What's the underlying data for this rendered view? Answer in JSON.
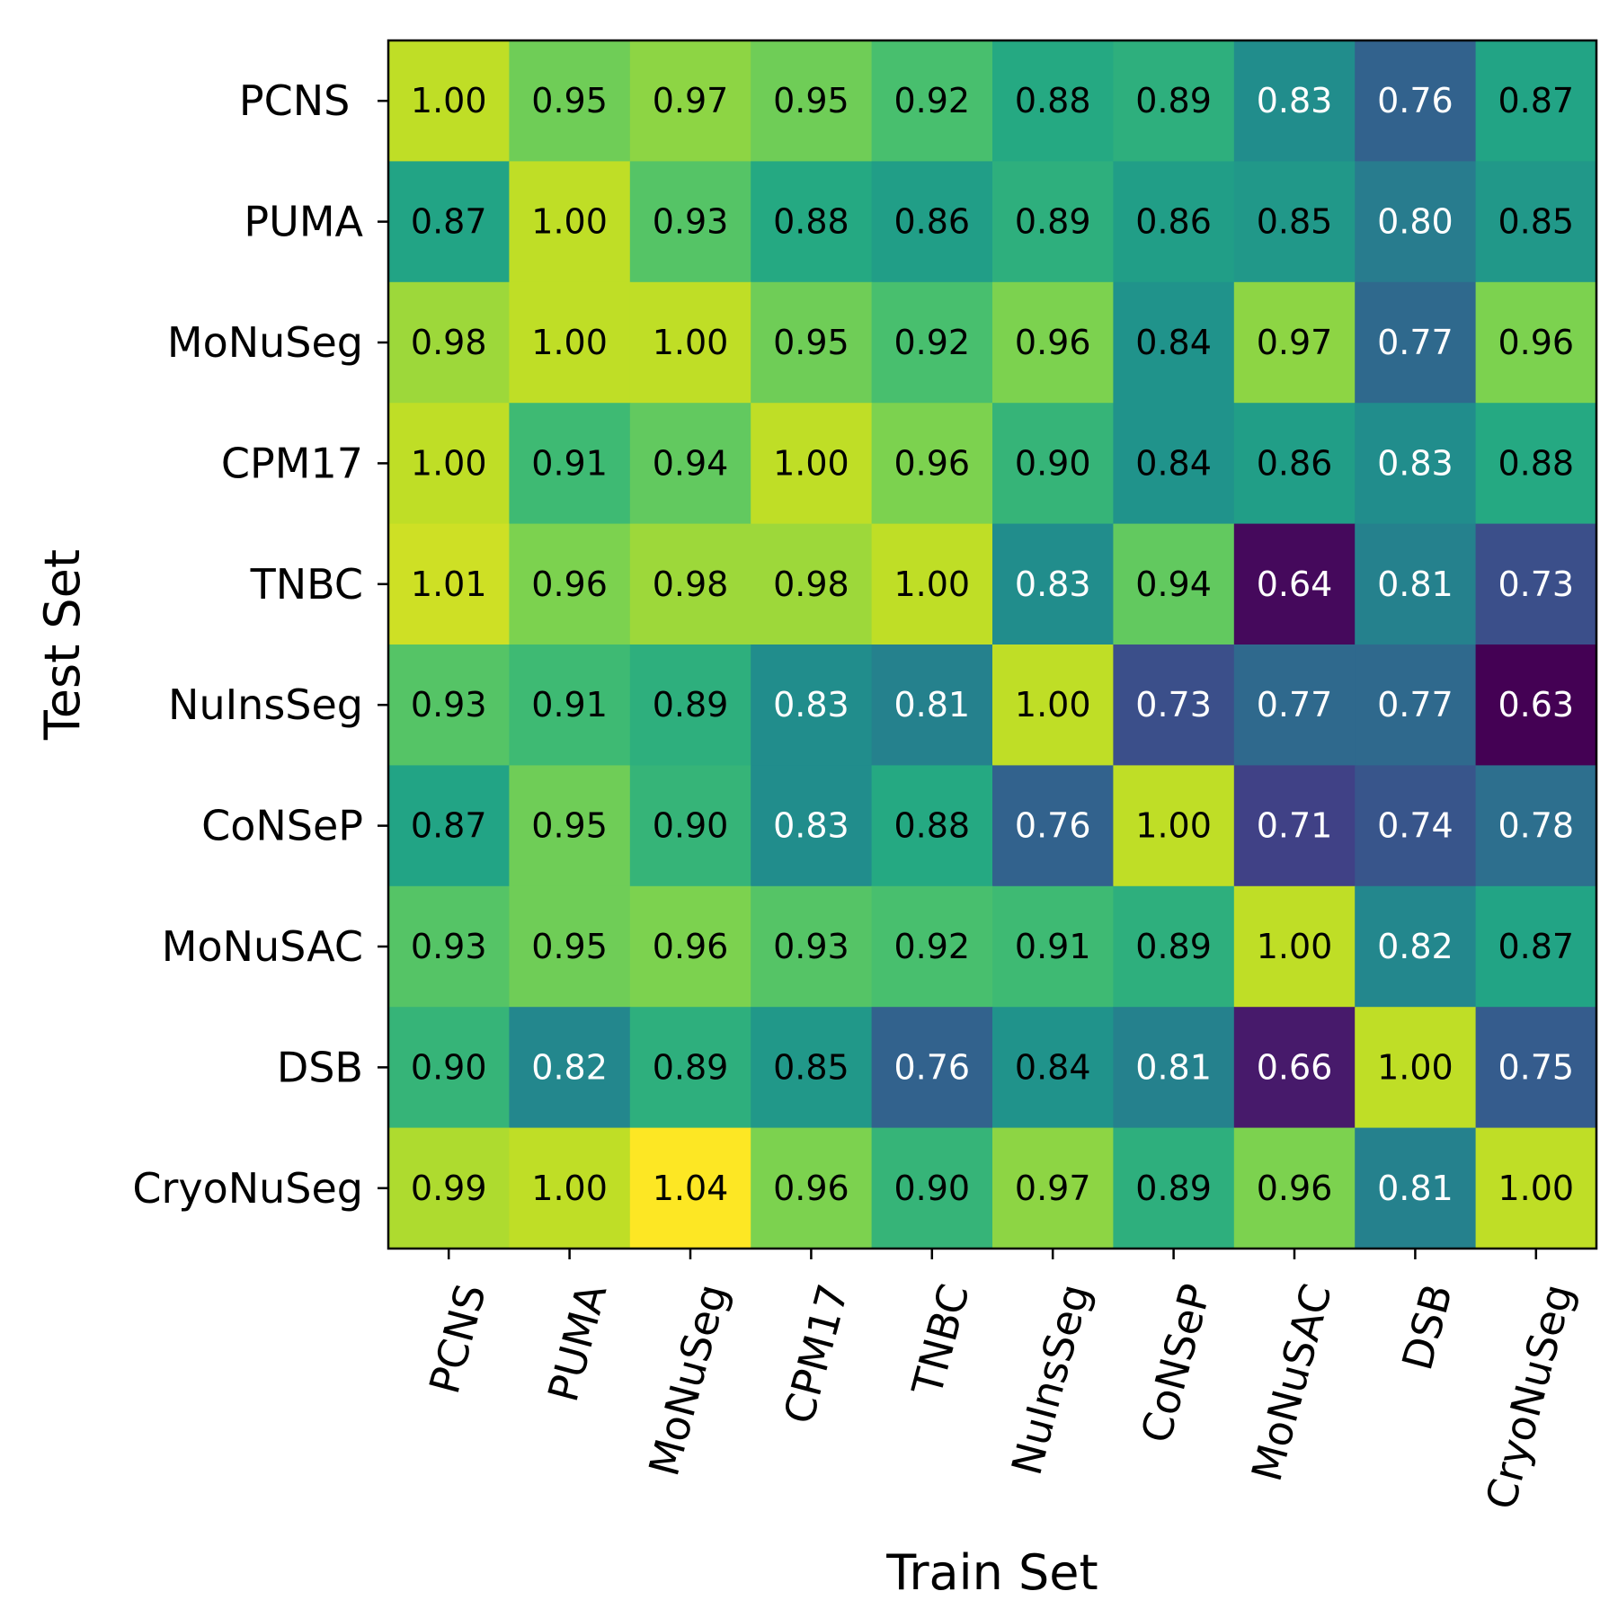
{
  "chart_data": {
    "type": "heatmap",
    "title": "",
    "xlabel": "Train Set",
    "ylabel": "Test Set",
    "x_categories": [
      "PCNS",
      "PUMA",
      "MoNuSeg",
      "CPM17",
      "TNBC",
      "NuInsSeg",
      "CoNSeP",
      "MoNuSAC",
      "DSB",
      "CryoNuSeg"
    ],
    "y_categories": [
      "PCNS ",
      "PUMA",
      "MoNuSeg",
      "CPM17",
      "TNBC",
      "NuInsSeg",
      "CoNSeP",
      "MoNuSAC",
      "DSB",
      "CryoNuSeg"
    ],
    "values": [
      [
        1.0,
        0.95,
        0.97,
        0.95,
        0.92,
        0.88,
        0.89,
        0.83,
        0.76,
        0.87
      ],
      [
        0.87,
        1.0,
        0.93,
        0.88,
        0.86,
        0.89,
        0.86,
        0.85,
        0.8,
        0.85
      ],
      [
        0.98,
        1.0,
        1.0,
        0.95,
        0.92,
        0.96,
        0.84,
        0.97,
        0.77,
        0.96
      ],
      [
        1.0,
        0.91,
        0.94,
        1.0,
        0.96,
        0.9,
        0.84,
        0.86,
        0.83,
        0.88
      ],
      [
        1.01,
        0.96,
        0.98,
        0.98,
        1.0,
        0.83,
        0.94,
        0.64,
        0.81,
        0.73
      ],
      [
        0.93,
        0.91,
        0.89,
        0.83,
        0.81,
        1.0,
        0.73,
        0.77,
        0.77,
        0.63
      ],
      [
        0.87,
        0.95,
        0.9,
        0.83,
        0.88,
        0.76,
        1.0,
        0.71,
        0.74,
        0.78
      ],
      [
        0.93,
        0.95,
        0.96,
        0.93,
        0.92,
        0.91,
        0.89,
        1.0,
        0.82,
        0.87
      ],
      [
        0.9,
        0.82,
        0.89,
        0.85,
        0.76,
        0.84,
        0.81,
        0.66,
        1.0,
        0.75
      ],
      [
        0.99,
        1.0,
        1.04,
        0.96,
        0.9,
        0.97,
        0.89,
        0.96,
        0.81,
        1.0
      ]
    ],
    "colormap": "viridis",
    "vmin": 0.63,
    "vmax": 1.04,
    "annotation_format": "0.00",
    "text_color_light": "#ffffff",
    "text_color_dark": "#000000",
    "xtick_rotation_deg": 75
  }
}
